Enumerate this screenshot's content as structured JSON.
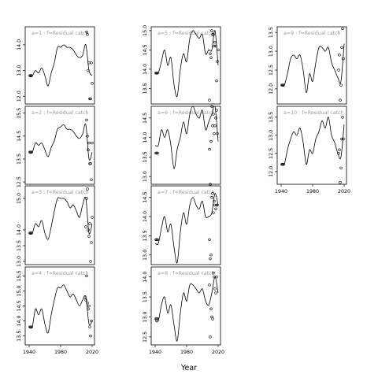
{
  "figure": {
    "xlabel": "Year"
  },
  "chart_data": [
    {
      "type": "line",
      "label": "a=1  :  f=Residual catch",
      "xlim": [
        1935,
        2023
      ],
      "xticks": [],
      "yticks": [
        12.0,
        13.0,
        14.0
      ],
      "ylim": [
        11.7,
        14.7
      ],
      "x": [
        1940,
        1944,
        1948,
        1952,
        1956,
        1960,
        1964,
        1968,
        1972,
        1976,
        1980,
        1984,
        1988,
        1992,
        1996,
        2000,
        2004,
        2008,
        2012,
        2016,
        2020
      ],
      "y": [
        12.8,
        12.8,
        13.0,
        12.9,
        13.1,
        12.8,
        12.4,
        12.9,
        13.3,
        13.9,
        13.9,
        14.0,
        13.9,
        13.9,
        13.8,
        13.6,
        13.5,
        13.6,
        14.0,
        13.0,
        12.8
      ],
      "points": {
        "x": [
          1941,
          1942,
          1943,
          2013,
          2014,
          2015,
          2016,
          2017,
          2018,
          2019,
          2020
        ],
        "y": [
          12.8,
          12.8,
          12.8,
          14.5,
          14.4,
          13.0,
          13.3,
          11.9,
          11.9,
          13.3,
          12.5
        ]
      }
    },
    {
      "type": "line",
      "label": "a=2  :  f=Residual catch",
      "xlim": [
        1935,
        2023
      ],
      "xticks": [],
      "yticks": [
        12.5,
        13.5,
        14.5,
        15.5
      ],
      "ylim": [
        12.4,
        15.8
      ],
      "x": [
        1940,
        1944,
        1948,
        1952,
        1956,
        1960,
        1964,
        1968,
        1972,
        1976,
        1980,
        1984,
        1988,
        1992,
        1996,
        2000,
        2004,
        2008,
        2012,
        2016,
        2020
      ],
      "y": [
        13.8,
        13.8,
        14.2,
        14.1,
        14.2,
        13.9,
        13.6,
        14.0,
        14.3,
        14.8,
        14.9,
        15.0,
        14.8,
        14.8,
        14.7,
        14.5,
        14.4,
        14.6,
        15.0,
        13.5,
        13.8
      ],
      "points": {
        "x": [
          1941,
          1942,
          1943,
          2013,
          2014,
          2015,
          2016,
          2017,
          2018,
          2019,
          2020
        ],
        "y": [
          13.8,
          13.8,
          13.8,
          15.2,
          14.5,
          13.9,
          14.2,
          13.3,
          13.3,
          12.6,
          14.2
        ]
      }
    },
    {
      "type": "line",
      "label": "a=3  :  f=Residual catch",
      "xlim": [
        1935,
        2023
      ],
      "xticks": [],
      "yticks": [
        13.0,
        13.5,
        14.0,
        15.0
      ],
      "ylim": [
        12.9,
        15.4
      ],
      "x": [
        1940,
        1944,
        1948,
        1952,
        1956,
        1960,
        1964,
        1968,
        1972,
        1976,
        1980,
        1984,
        1988,
        1992,
        1996,
        2000,
        2004,
        2008,
        2012,
        2016,
        2020
      ],
      "y": [
        13.9,
        13.9,
        14.2,
        14.1,
        14.3,
        13.9,
        13.7,
        14.1,
        14.6,
        15.0,
        15.0,
        15.0,
        14.9,
        14.7,
        14.8,
        14.6,
        14.4,
        14.8,
        15.0,
        13.9,
        14.2
      ],
      "points": {
        "x": [
          1941,
          1942,
          1943,
          2012,
          2013,
          2014,
          2015,
          2016,
          2017,
          2018,
          2019,
          2020
        ],
        "y": [
          13.9,
          13.9,
          13.9,
          14.1,
          15.0,
          15.3,
          14.0,
          13.8,
          14.2,
          13.0,
          13.6,
          14.4
        ]
      }
    },
    {
      "type": "line",
      "label": "a=4  :  f=Residual catch",
      "xlim": [
        1935,
        2023
      ],
      "xticks": [
        1940,
        1980,
        2020
      ],
      "yticks": [
        13.5,
        14.0,
        14.5,
        15.0,
        15.5
      ],
      "ylim": [
        13.2,
        15.8
      ],
      "x": [
        1940,
        1944,
        1948,
        1952,
        1956,
        1960,
        1964,
        1968,
        1972,
        1976,
        1980,
        1984,
        1988,
        1992,
        1996,
        2000,
        2004,
        2008,
        2012,
        2016,
        2020
      ],
      "y": [
        13.8,
        13.8,
        14.4,
        14.2,
        14.4,
        13.9,
        13.6,
        14.2,
        14.7,
        15.1,
        15.1,
        15.2,
        15.0,
        14.8,
        14.9,
        14.7,
        14.5,
        14.7,
        14.8,
        13.9,
        14.0
      ],
      "points": {
        "x": [
          1941,
          1942,
          1943,
          2011,
          2012,
          2013,
          2014,
          2015,
          2016,
          2017,
          2018,
          2019
        ],
        "y": [
          13.8,
          13.8,
          13.8,
          14.8,
          14.7,
          15.5,
          14.6,
          14.4,
          14.5,
          13.8,
          13.5,
          14.0
        ]
      }
    },
    {
      "type": "line",
      "label": "a=5  :  f=Residual catch",
      "xlim": [
        1935,
        2023
      ],
      "xticks": [],
      "yticks": [
        13.5,
        14.0,
        14.5,
        15.0
      ],
      "ylim": [
        13.1,
        15.1
      ],
      "x": [
        1940,
        1944,
        1948,
        1952,
        1956,
        1960,
        1964,
        1968,
        1972,
        1976,
        1980,
        1984,
        1988,
        1992,
        1996,
        2000,
        2004,
        2008,
        2012,
        2016,
        2020
      ],
      "y": [
        13.9,
        13.9,
        14.2,
        14.5,
        14.1,
        14.3,
        13.6,
        13.3,
        14.0,
        14.4,
        14.2,
        14.8,
        15.0,
        14.9,
        14.8,
        14.9,
        14.4,
        14.5,
        14.5,
        15.0,
        14.1
      ],
      "points": {
        "x": [
          1941,
          1942,
          1943,
          2009,
          2010,
          2011,
          2012,
          2013,
          2014,
          2015,
          2016,
          2017,
          2018,
          2019,
          2020
        ],
        "y": [
          13.9,
          13.9,
          13.9,
          13.2,
          14.4,
          14.3,
          15.0,
          14.9,
          14.9,
          14.6,
          14.7,
          14.6,
          13.7,
          14.2,
          14.5
        ]
      }
    },
    {
      "type": "line",
      "label": "a=6  :  f=Residual catch",
      "xlim": [
        1935,
        2023
      ],
      "xticks": [],
      "yticks": [
        13.0,
        13.5,
        14.0,
        14.5
      ],
      "ylim": [
        12.8,
        14.8
      ],
      "x": [
        1940,
        1944,
        1948,
        1952,
        1956,
        1960,
        1964,
        1968,
        1972,
        1976,
        1980,
        1984,
        1988,
        1992,
        1996,
        2000,
        2004,
        2008,
        2012,
        2016,
        2020
      ],
      "y": [
        13.8,
        13.8,
        14.2,
        14.0,
        14.2,
        13.8,
        13.2,
        13.7,
        14.0,
        14.4,
        14.1,
        14.6,
        14.8,
        14.6,
        14.5,
        14.7,
        14.2,
        14.4,
        14.6,
        14.8,
        13.9
      ],
      "points": {
        "x": [
          1941,
          1942,
          1943,
          2009,
          2010,
          2011,
          2012,
          2013,
          2014,
          2015,
          2016,
          2017,
          2018,
          2019
        ],
        "y": [
          13.6,
          13.6,
          13.6,
          13.7,
          12.8,
          13.9,
          14.8,
          14.3,
          14.6,
          14.1,
          14.3,
          14.5,
          14.7,
          14.1
        ]
      }
    },
    {
      "type": "line",
      "label": "a=7  :  f=Residual catch",
      "xlim": [
        1935,
        2023
      ],
      "xticks": [],
      "yticks": [
        13.0,
        13.5,
        14.0,
        14.5
      ],
      "ylim": [
        12.75,
        14.8
      ],
      "x": [
        1940,
        1944,
        1948,
        1952,
        1956,
        1960,
        1964,
        1968,
        1972,
        1976,
        1980,
        1984,
        1988,
        1992,
        1996,
        2000,
        2004,
        2008,
        2012,
        2016,
        2020
      ],
      "y": [
        13.3,
        13.3,
        13.7,
        14.0,
        13.6,
        13.8,
        13.2,
        12.8,
        13.6,
        14.1,
        13.8,
        14.3,
        14.5,
        14.3,
        14.2,
        14.4,
        14.0,
        14.0,
        14.1,
        14.6,
        14.3
      ],
      "points": {
        "x": [
          1941,
          1942,
          1943,
          2009,
          2010,
          2011,
          2012,
          2013,
          2014,
          2015,
          2016,
          2017,
          2018,
          2019
        ],
        "y": [
          13.4,
          13.4,
          13.4,
          13.4,
          12.9,
          13.0,
          14.5,
          14.6,
          14.1,
          14.4,
          14.3,
          14.2,
          14.3,
          14.3
        ]
      }
    },
    {
      "type": "line",
      "label": "a=8  :  f=Residual catch",
      "xlim": [
        1935,
        2023
      ],
      "xticks": [
        1940,
        1980,
        2020
      ],
      "yticks": [
        12.5,
        13.0,
        13.5,
        14.0
      ],
      "ylim": [
        12.3,
        14.25
      ],
      "x": [
        1940,
        1944,
        1948,
        1952,
        1956,
        1960,
        1964,
        1968,
        1972,
        1976,
        1980,
        1984,
        1988,
        1992,
        1996,
        2000,
        2004,
        2008,
        2012,
        2016,
        2020
      ],
      "y": [
        12.9,
        12.9,
        13.3,
        13.5,
        13.1,
        13.3,
        12.8,
        12.4,
        13.1,
        13.6,
        13.4,
        13.8,
        13.8,
        13.7,
        13.6,
        13.7,
        13.4,
        13.3,
        13.6,
        14.0,
        13.6
      ],
      "points": {
        "x": [
          1941,
          1942,
          1943,
          2009,
          2010,
          2011,
          2012,
          2013,
          2014,
          2015,
          2016,
          2017,
          2018
        ],
        "y": [
          12.95,
          12.95,
          12.95,
          13.8,
          12.5,
          13.2,
          13.0,
          12.95,
          14.1,
          14.0,
          13.7,
          13.6,
          14.0
        ]
      }
    },
    {
      "type": "line",
      "label": "a=9  :  f=Residual catch",
      "xlim": [
        1935,
        2023
      ],
      "xticks": [],
      "yticks": [
        12.0,
        12.5,
        13.0,
        13.5
      ],
      "ylim": [
        11.6,
        13.65
      ],
      "x": [
        1940,
        1944,
        1948,
        1952,
        1956,
        1960,
        1964,
        1968,
        1972,
        1976,
        1980,
        1984,
        1988,
        1992,
        1996,
        2000,
        2004,
        2008,
        2012,
        2016,
        2020
      ],
      "y": [
        12.1,
        12.1,
        12.4,
        12.8,
        12.9,
        12.8,
        12.9,
        12.5,
        11.9,
        12.4,
        12.2,
        12.7,
        13.1,
        13.1,
        13.0,
        13.1,
        12.7,
        12.5,
        12.3,
        12.2,
        13.2
      ],
      "points": {
        "x": [
          1941,
          1942,
          1943,
          2013,
          2014,
          2015,
          2016,
          2017,
          2018,
          2019
        ],
        "y": [
          12.1,
          12.1,
          12.1,
          12.5,
          12.9,
          11.7,
          12.1,
          13.1,
          13.6,
          12.8
        ]
      }
    },
    {
      "type": "line",
      "label": "a=10  :  f=Residual catch",
      "xlim": [
        1935,
        2023
      ],
      "xticks": [
        1940,
        1980,
        2020
      ],
      "yticks": [
        12.0,
        12.5,
        13.0,
        13.5
      ],
      "ylim": [
        11.65,
        13.8
      ],
      "x": [
        1940,
        1944,
        1948,
        1952,
        1956,
        1960,
        1964,
        1968,
        1972,
        1976,
        1980,
        1984,
        1988,
        1992,
        1996,
        2000,
        2004,
        2008,
        2012,
        2016,
        2020
      ],
      "y": [
        12.2,
        12.2,
        12.6,
        12.9,
        13.1,
        13.0,
        13.2,
        12.8,
        12.2,
        12.6,
        12.5,
        12.9,
        13.1,
        13.4,
        13.2,
        13.5,
        13.0,
        12.8,
        12.5,
        12.4,
        13.3
      ],
      "points": {
        "x": [
          1941,
          1942,
          1943,
          2013,
          2014,
          2015,
          2016,
          2017,
          2018,
          2019
        ],
        "y": [
          12.2,
          12.2,
          12.2,
          12.5,
          12.6,
          11.7,
          12.1,
          12.9,
          13.5,
          12.9
        ]
      }
    }
  ]
}
